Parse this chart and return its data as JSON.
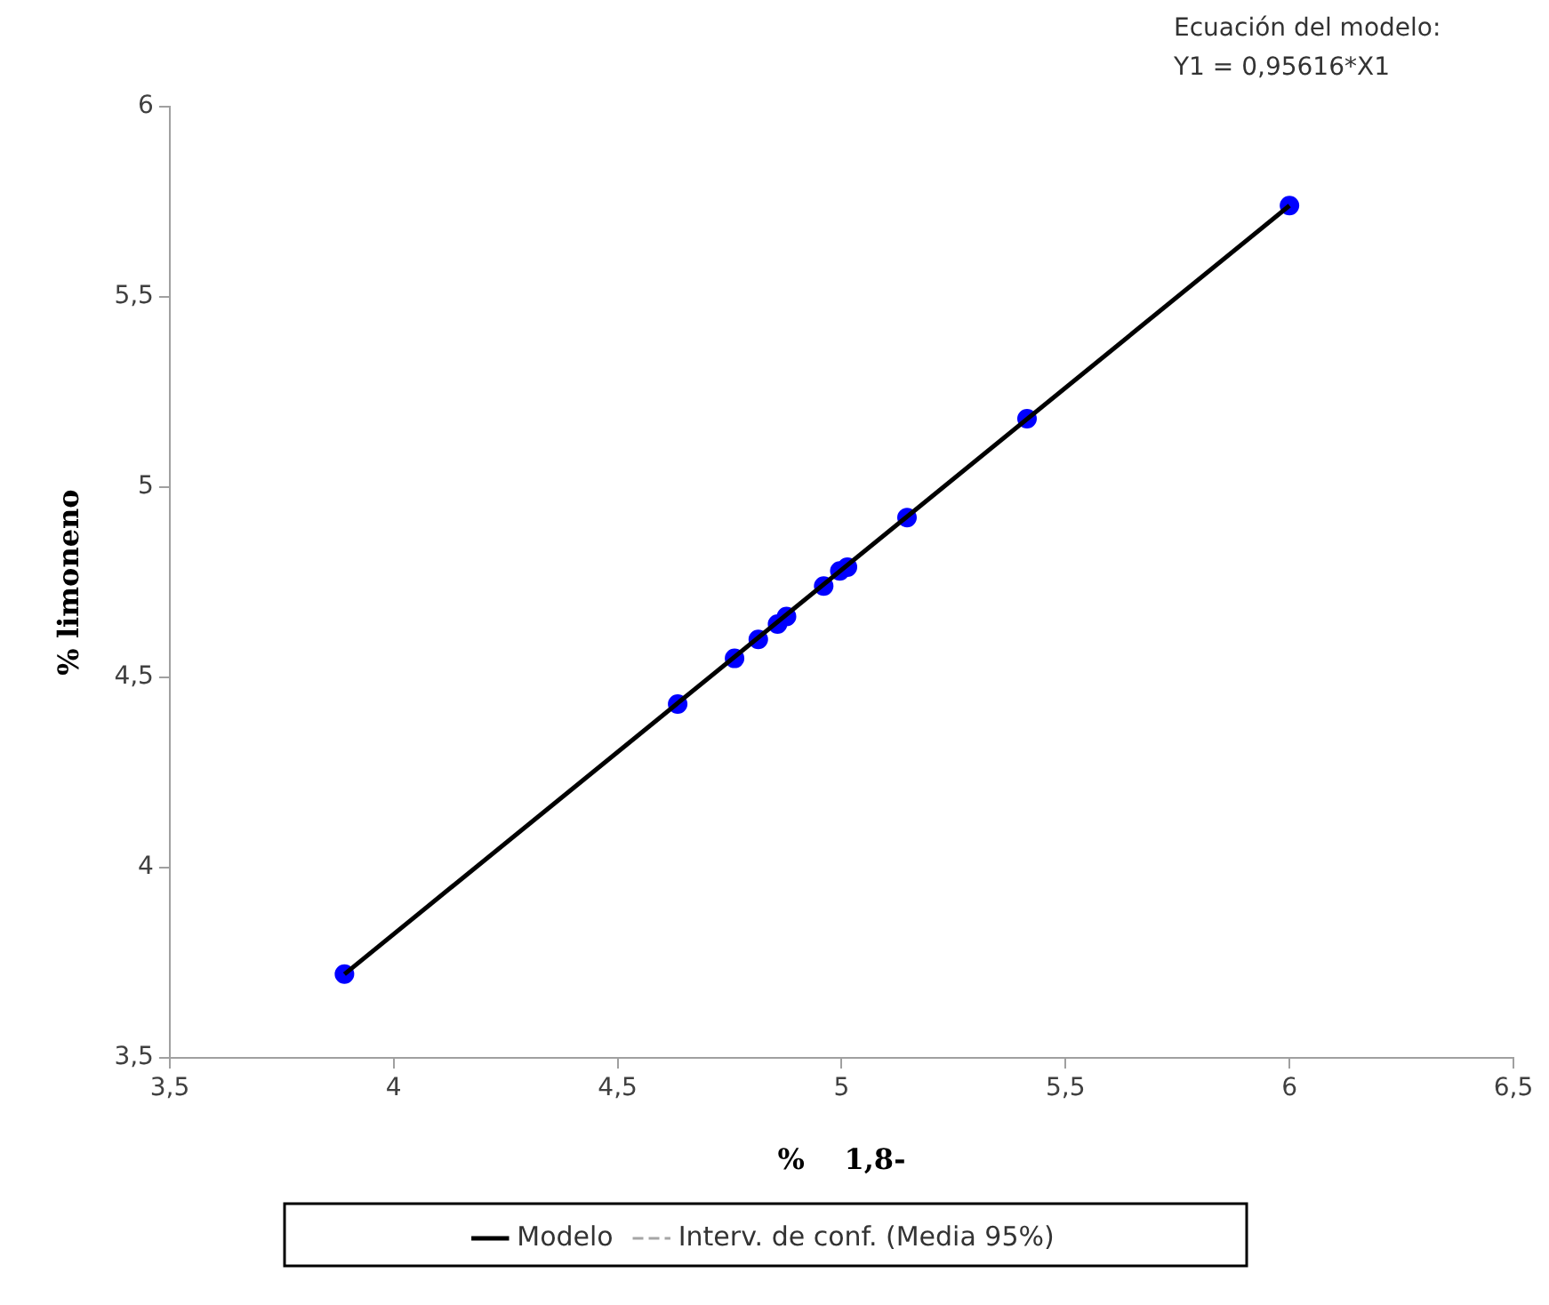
{
  "chart_data": {
    "type": "scatter",
    "xlabel": "%    1,8-",
    "ylabel": "% limoneno",
    "annotations": [
      "Ecuación del modelo:",
      "Y1 = 0,95616*X1"
    ],
    "series": [
      {
        "color": "#0000ff",
        "marker": "circle",
        "x": [
          3.89,
          4.634,
          4.761,
          4.814,
          4.857,
          4.877,
          4.96,
          4.996,
          5.013,
          5.146,
          5.414,
          6.0
        ],
        "values": [
          3.72,
          4.43,
          4.55,
          4.6,
          4.64,
          4.66,
          4.74,
          4.78,
          4.79,
          4.92,
          5.18,
          5.74
        ]
      },
      {
        "type": "line",
        "name": "Interv. de conf. (Media 95%)",
        "color": "#a6a6a6",
        "line_style": "dashed",
        "marker": "none"
      },
      {
        "type": "line",
        "name": "Modelo",
        "color": "#000000",
        "line_style": "solid",
        "marker": "none",
        "x": [
          3.89,
          6.0
        ],
        "values": [
          3.72,
          5.74
        ]
      }
    ],
    "xlim": [
      3.5,
      6.5
    ],
    "xticks": [
      {
        "value": 3.5,
        "label": "3,5"
      },
      4,
      {
        "value": 4.5,
        "label": "4,5"
      },
      5,
      {
        "value": 5.5,
        "label": "5,5"
      },
      6,
      {
        "value": 6.5,
        "label": "6,5"
      }
    ],
    "ylim": [
      3.5,
      6
    ],
    "yticks": [
      {
        "value": 3.5,
        "label": "3,5"
      },
      4,
      {
        "value": 4.5,
        "label": "4,5"
      },
      5,
      {
        "value": 5.5,
        "label": "5,5"
      },
      6
    ],
    "grid": false,
    "legend": "bottom"
  }
}
